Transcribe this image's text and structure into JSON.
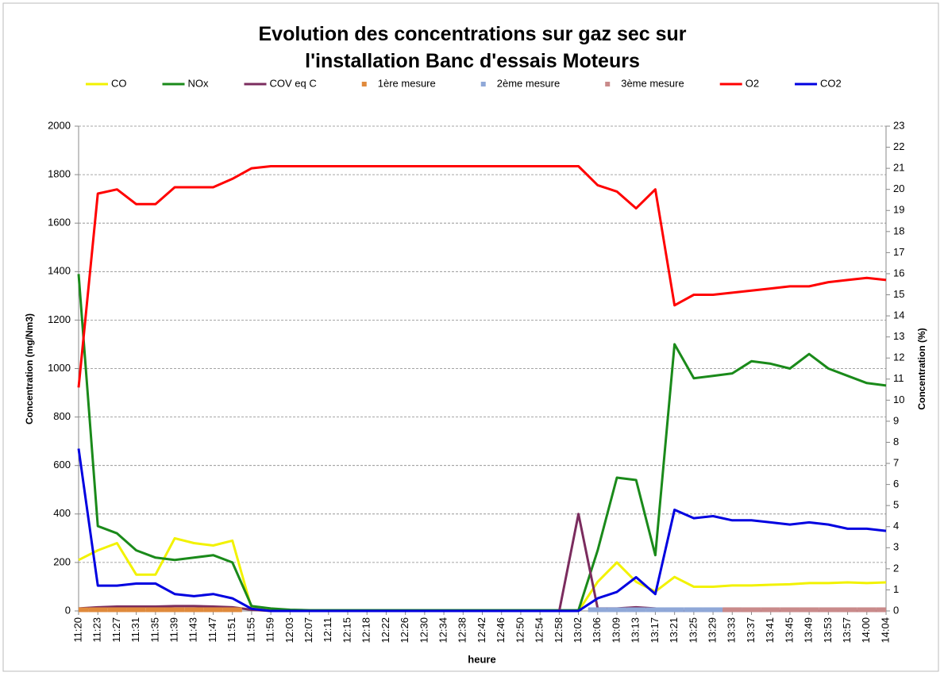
{
  "chart_data": {
    "type": "line",
    "title": "Evolution des concentrations sur gaz sec sur l'installation Banc d'essais Moteurs",
    "xlabel": "heure",
    "ylabel": "Concentration (mg/Nm3)",
    "y2label": "Concentration (%)",
    "categories": [
      "11:20",
      "11:23",
      "11:27",
      "11:31",
      "11:35",
      "11:39",
      "11:43",
      "11:47",
      "11:51",
      "11:55",
      "11:59",
      "12:03",
      "12:07",
      "12:11",
      "12:15",
      "12:18",
      "12:22",
      "12:26",
      "12:30",
      "12:34",
      "12:38",
      "12:42",
      "12:46",
      "12:50",
      "12:54",
      "12:58",
      "13:02",
      "13:06",
      "13:09",
      "13:13",
      "13:17",
      "13:21",
      "13:25",
      "13:29",
      "13:33",
      "13:37",
      "13:41",
      "13:45",
      "13:49",
      "13:53",
      "13:57",
      "14:00",
      "14:04"
    ],
    "ylim": [
      0,
      2000
    ],
    "yticks": [
      0,
      200,
      400,
      600,
      800,
      1000,
      1200,
      1400,
      1600,
      1800,
      2000
    ],
    "y2lim": [
      0,
      23
    ],
    "y2ticks": [
      0,
      1,
      2,
      3,
      4,
      5,
      6,
      7,
      8,
      9,
      10,
      11,
      12,
      13,
      14,
      15,
      16,
      17,
      18,
      19,
      20,
      21,
      22,
      23
    ],
    "grid": true,
    "legend": "top",
    "series": [
      {
        "name": "CO",
        "color": "#f2f200",
        "values": [
          210,
          250,
          280,
          150,
          150,
          300,
          280,
          270,
          290,
          10,
          5,
          3,
          2,
          1,
          0,
          0,
          0,
          0,
          0,
          0,
          0,
          0,
          0,
          0,
          0,
          0,
          0,
          120,
          200,
          120,
          80,
          140,
          100,
          100,
          105,
          105,
          108,
          110,
          115,
          115,
          118,
          115,
          118
        ]
      },
      {
        "name": "NOx",
        "color": "#1a8a1a",
        "values": [
          1390,
          350,
          320,
          250,
          220,
          210,
          220,
          230,
          200,
          20,
          10,
          5,
          3,
          3,
          3,
          3,
          3,
          3,
          3,
          3,
          3,
          3,
          3,
          3,
          3,
          3,
          3,
          250,
          550,
          540,
          230,
          1100,
          960,
          970,
          980,
          1030,
          1020,
          1000,
          1060,
          1000,
          970,
          940,
          930
        ]
      },
      {
        "name": "COV eq C",
        "color": "#7b2c5e",
        "values": [
          10,
          15,
          18,
          18,
          18,
          20,
          20,
          18,
          15,
          5,
          0,
          0,
          0,
          0,
          0,
          0,
          0,
          0,
          0,
          0,
          0,
          0,
          0,
          0,
          0,
          0,
          400,
          10,
          10,
          15,
          10,
          0,
          0,
          0,
          0,
          0,
          0,
          0,
          0,
          0,
          0,
          0,
          0
        ]
      },
      {
        "name": "1ère mesure",
        "color": "#e08a3c",
        "marker": "square",
        "values": [
          5,
          5,
          5,
          5,
          5,
          5,
          5,
          5,
          5,
          null,
          null,
          null,
          null,
          null,
          null,
          null,
          null,
          null,
          null,
          null,
          null,
          null,
          null,
          null,
          null,
          null,
          null,
          null,
          null,
          null,
          null,
          null,
          null,
          null,
          null,
          null,
          null,
          null,
          null,
          null,
          null,
          null,
          null
        ]
      },
      {
        "name": "2ème mesure",
        "color": "#8fa8d8",
        "marker": "square",
        "values": [
          null,
          null,
          null,
          null,
          null,
          null,
          null,
          null,
          null,
          null,
          null,
          null,
          null,
          null,
          null,
          null,
          null,
          null,
          null,
          null,
          null,
          null,
          null,
          null,
          null,
          null,
          null,
          5,
          5,
          5,
          5,
          5,
          5,
          5,
          5,
          null,
          null,
          null,
          null,
          null,
          null,
          null,
          null
        ]
      },
      {
        "name": "3ème mesure",
        "color": "#c98a8a",
        "marker": "square",
        "values": [
          null,
          null,
          null,
          null,
          null,
          null,
          null,
          null,
          null,
          null,
          null,
          null,
          null,
          null,
          null,
          null,
          null,
          null,
          null,
          null,
          null,
          null,
          null,
          null,
          null,
          null,
          null,
          null,
          null,
          null,
          null,
          null,
          null,
          null,
          5,
          5,
          5,
          5,
          5,
          5,
          5,
          5,
          5
        ]
      },
      {
        "name": "O2",
        "color": "#ff0000",
        "axis": "y2",
        "values": [
          10.6,
          19.8,
          20,
          19.3,
          19.3,
          20.1,
          20.1,
          20.1,
          20.5,
          21,
          21.1,
          21.1,
          21.1,
          21.1,
          21.1,
          21.1,
          21.1,
          21.1,
          21.1,
          21.1,
          21.1,
          21.1,
          21.1,
          21.1,
          21.1,
          21.1,
          21.1,
          20.2,
          19.9,
          19.1,
          20,
          14.5,
          15,
          15,
          15.1,
          15.2,
          15.3,
          15.4,
          15.4,
          15.6,
          15.7,
          15.8,
          15.7
        ]
      },
      {
        "name": "CO2",
        "color": "#0000e0",
        "axis": "y2",
        "values": [
          7.7,
          1.2,
          1.2,
          1.3,
          1.3,
          0.8,
          0.7,
          0.8,
          0.6,
          0.1,
          0,
          0,
          0,
          0,
          0,
          0,
          0,
          0,
          0,
          0,
          0,
          0,
          0,
          0,
          0,
          0,
          0,
          0.6,
          0.9,
          1.6,
          0.8,
          4.8,
          4.4,
          4.5,
          4.3,
          4.3,
          4.2,
          4.1,
          4.2,
          4.1,
          3.9,
          3.9,
          3.8
        ]
      }
    ]
  }
}
